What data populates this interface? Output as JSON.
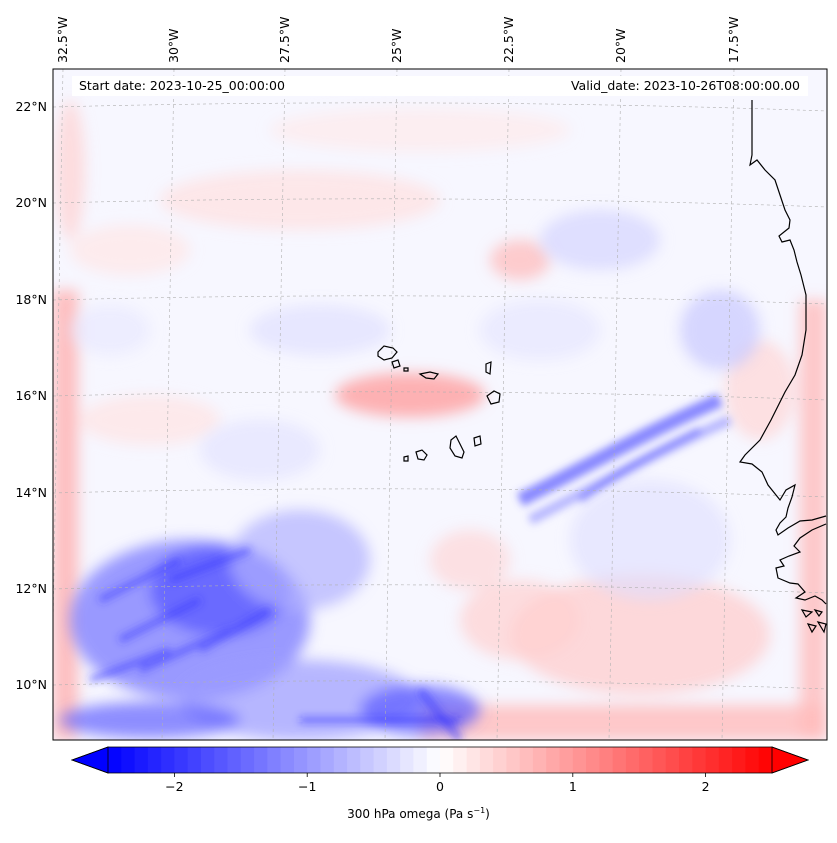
{
  "map": {
    "field": "300 hPa omega",
    "units_text": "(Pa s",
    "units_sup": "−1",
    "units_close": ")",
    "start_label": "Start date: 2023-10-25_00:00:00",
    "valid_label": "Valid_date: 2023-10-26T08:00:00.00",
    "lon_labels": [
      "32.5°W",
      "30°W",
      "27.5°W",
      "25°W",
      "22.5°W",
      "20°W",
      "17.5°W"
    ],
    "lat_labels": [
      "22°N",
      "20°N",
      "18°N",
      "16°N",
      "14°N",
      "12°N",
      "10°N"
    ],
    "colorbar": {
      "min": -2.5,
      "max": 2.5,
      "ticks": [
        -2,
        -1,
        0,
        1,
        2
      ],
      "tick_labels": [
        "−2",
        "−1",
        "0",
        "1",
        "2"
      ],
      "low_color": "#0000ff",
      "mid_color": "#ffffff",
      "high_color": "#ff0000"
    },
    "colors": {
      "coast": "#000000",
      "grid": "#b0b0b0",
      "frame": "#000000"
    }
  }
}
